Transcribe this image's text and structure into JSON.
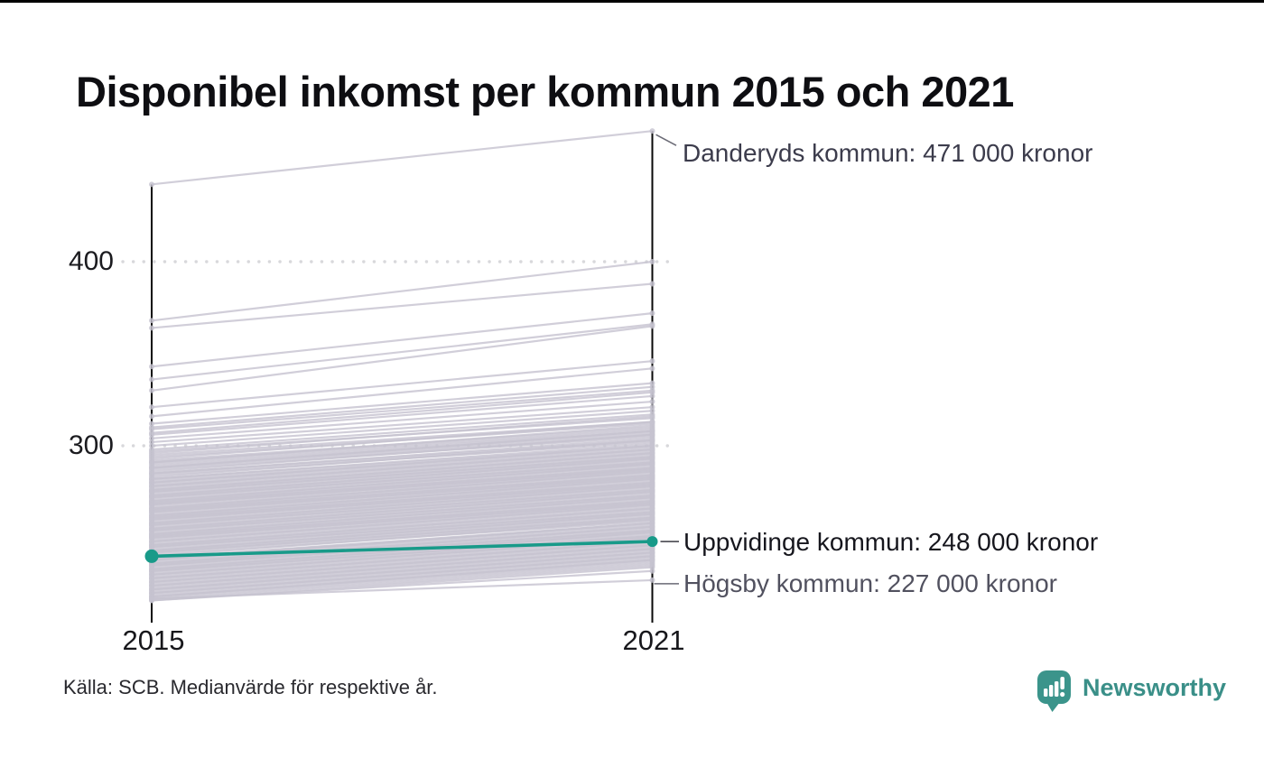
{
  "title": "Disponibel inkomst per kommun 2015 och 2021",
  "source_note": "Källa: SCB. Medianvärde för respektive år.",
  "branding": {
    "name": "Newsworthy",
    "logo_icon": "speech-bubble-bar-chart-icon",
    "icon_color": "#3b948b",
    "text_color": "#3a8f88"
  },
  "colors": {
    "highlight": "#189a89",
    "background_line": "#c6c3d0",
    "axis": "#0a0a0a",
    "grid_dot": "#d8d8db"
  },
  "chart_data": {
    "type": "line",
    "subtype": "slope",
    "title": "Disponibel inkomst per kommun 2015 och 2021",
    "x": [
      "2015",
      "2021"
    ],
    "x_labels": [
      "2015",
      "2021"
    ],
    "unit": "tusen kronor",
    "ytick_labels": [
      "400",
      "300"
    ],
    "yticks": [
      400,
      300
    ],
    "ylim": [
      205,
      480
    ],
    "grid": "dotted",
    "highlight": {
      "name": "Uppvidinge kommun",
      "label": "Uppvidinge kommun: 248 000 kronor",
      "values": [
        240,
        248
      ],
      "color": "#189a89"
    },
    "annotations": [
      {
        "name": "Danderyds kommun",
        "label": "Danderyds kommun: 471 000 kronor",
        "values": [
          442,
          471
        ]
      },
      {
        "name": "Högsby kommun",
        "label": "Högsby kommun: 227 000 kronor",
        "values": [
          217,
          227
        ]
      }
    ],
    "background_series": [
      [
        368,
        400
      ],
      [
        364,
        388
      ],
      [
        343,
        372
      ],
      [
        336,
        366
      ],
      [
        330,
        365
      ],
      [
        321,
        346
      ],
      [
        316,
        342
      ],
      [
        312,
        334
      ],
      [
        310,
        332
      ],
      [
        309,
        330
      ],
      [
        307,
        329
      ],
      [
        306,
        327
      ],
      [
        304,
        324
      ],
      [
        302,
        321
      ],
      [
        300,
        319
      ],
      [
        298,
        317
      ],
      [
        297,
        315
      ],
      [
        296,
        316
      ],
      [
        295,
        313
      ],
      [
        294,
        312
      ],
      [
        293,
        313
      ],
      [
        292,
        310
      ],
      [
        291,
        309
      ],
      [
        291,
        311
      ],
      [
        290,
        308
      ],
      [
        289,
        307
      ],
      [
        288,
        308
      ],
      [
        288,
        306
      ],
      [
        287,
        305
      ],
      [
        286,
        306
      ],
      [
        285,
        303
      ],
      [
        285,
        304
      ],
      [
        284,
        302
      ],
      [
        283,
        303
      ],
      [
        282,
        300
      ],
      [
        282,
        301
      ],
      [
        281,
        299
      ],
      [
        280,
        300
      ],
      [
        280,
        298
      ],
      [
        279,
        297
      ],
      [
        278,
        298
      ],
      [
        278,
        296
      ],
      [
        277,
        295
      ],
      [
        276,
        296
      ],
      [
        276,
        294
      ],
      [
        275,
        293
      ],
      [
        275,
        294
      ],
      [
        274,
        292
      ],
      [
        273,
        293
      ],
      [
        273,
        291
      ],
      [
        272,
        290
      ],
      [
        272,
        291
      ],
      [
        271,
        289
      ],
      [
        270,
        290
      ],
      [
        270,
        288
      ],
      [
        269,
        287
      ],
      [
        269,
        288
      ],
      [
        268,
        286
      ],
      [
        268,
        287
      ],
      [
        267,
        285
      ],
      [
        266,
        286
      ],
      [
        266,
        284
      ],
      [
        265,
        283
      ],
      [
        265,
        284
      ],
      [
        264,
        282
      ],
      [
        264,
        283
      ],
      [
        263,
        281
      ],
      [
        262,
        282
      ],
      [
        262,
        280
      ],
      [
        261,
        279
      ],
      [
        261,
        280
      ],
      [
        260,
        278
      ],
      [
        260,
        279
      ],
      [
        259,
        277
      ],
      [
        258,
        278
      ],
      [
        258,
        276
      ],
      [
        257,
        275
      ],
      [
        257,
        276
      ],
      [
        256,
        274
      ],
      [
        255,
        275
      ],
      [
        255,
        273
      ],
      [
        254,
        272
      ],
      [
        254,
        273
      ],
      [
        253,
        271
      ],
      [
        252,
        272
      ],
      [
        252,
        270
      ],
      [
        251,
        269
      ],
      [
        251,
        270
      ],
      [
        250,
        268
      ],
      [
        250,
        269
      ],
      [
        249,
        267
      ],
      [
        248,
        268
      ],
      [
        248,
        266
      ],
      [
        247,
        265
      ],
      [
        246,
        266
      ],
      [
        246,
        264
      ],
      [
        245,
        263
      ],
      [
        245,
        264
      ],
      [
        244,
        262
      ],
      [
        243,
        263
      ],
      [
        243,
        261
      ],
      [
        242,
        260
      ],
      [
        242,
        261
      ],
      [
        241,
        259
      ],
      [
        240,
        260
      ],
      [
        239,
        258
      ],
      [
        239,
        257
      ],
      [
        238,
        258
      ],
      [
        238,
        256
      ],
      [
        237,
        255
      ],
      [
        236,
        256
      ],
      [
        236,
        254
      ],
      [
        235,
        253
      ],
      [
        235,
        254
      ],
      [
        234,
        252
      ],
      [
        233,
        253
      ],
      [
        233,
        251
      ],
      [
        232,
        250
      ],
      [
        232,
        251
      ],
      [
        231,
        249
      ],
      [
        230,
        250
      ],
      [
        230,
        248
      ],
      [
        229,
        247
      ],
      [
        228,
        248
      ],
      [
        228,
        246
      ],
      [
        227,
        245
      ],
      [
        226,
        246
      ],
      [
        226,
        244
      ],
      [
        225,
        243
      ],
      [
        224,
        244
      ],
      [
        224,
        242
      ],
      [
        223,
        241
      ],
      [
        222,
        242
      ],
      [
        222,
        240
      ],
      [
        221,
        239
      ],
      [
        220,
        240
      ],
      [
        220,
        238
      ],
      [
        219,
        237
      ],
      [
        218,
        238
      ],
      [
        218,
        236
      ],
      [
        217,
        235
      ],
      [
        216,
        234
      ],
      [
        216,
        232
      ]
    ]
  }
}
